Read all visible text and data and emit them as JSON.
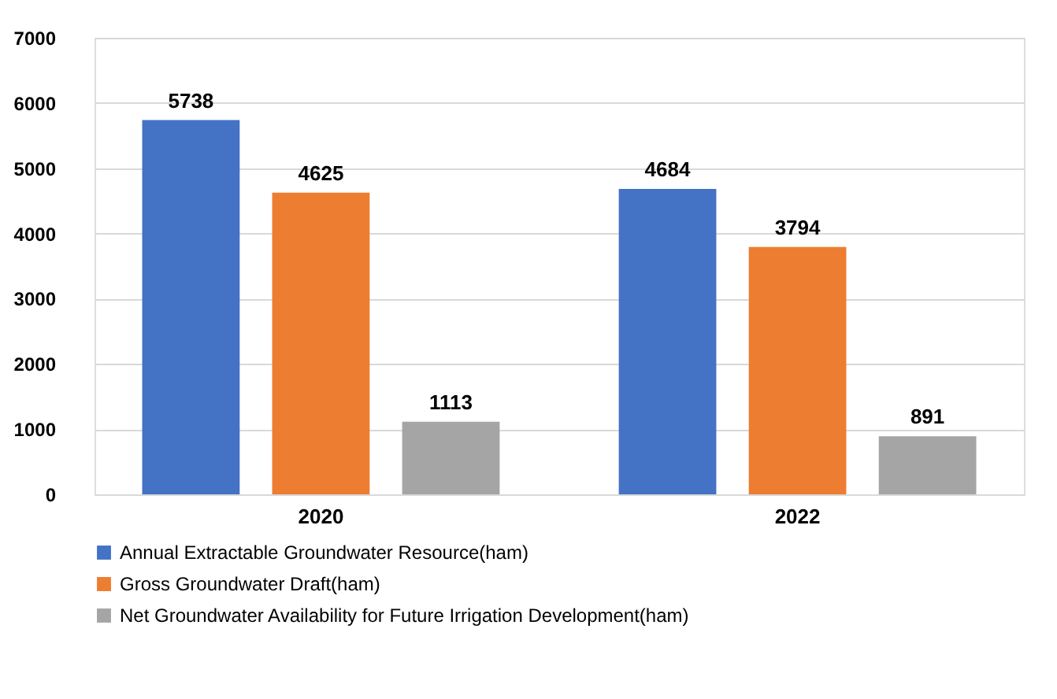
{
  "chart_data": {
    "type": "bar",
    "categories": [
      "2020",
      "2022"
    ],
    "series": [
      {
        "name": "Annual Extractable Groundwater Resource(ham)",
        "color": "#4472c4",
        "values": [
          5738,
          4684
        ]
      },
      {
        "name": "Gross Groundwater Draft(ham)",
        "color": "#ed7d31",
        "values": [
          4625,
          3794
        ]
      },
      {
        "name": "Net  Groundwater Availability for Future Irrigation Development(ham)",
        "color": "#a5a5a5",
        "values": [
          1113,
          891
        ]
      }
    ],
    "ylim": [
      0,
      7000
    ],
    "yticks": [
      0,
      1000,
      2000,
      3000,
      4000,
      5000,
      6000,
      7000
    ],
    "grid": "y",
    "legend": "bottom",
    "data_labels": true
  }
}
